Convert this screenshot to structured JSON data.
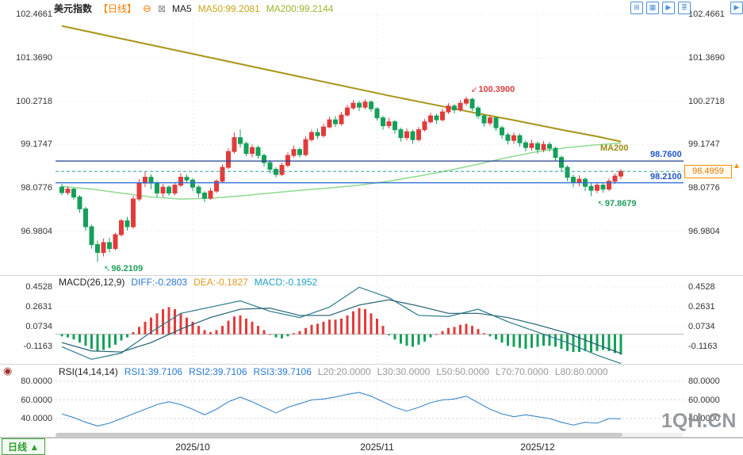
{
  "header": {
    "symbol": "美元指数",
    "period": "【日线】",
    "collapse_icon": "⊖",
    "ma5_checkbox": "⊠",
    "ma5": "MA5",
    "ma50": "MA50:99.2081",
    "ma200": "MA200:99.2144"
  },
  "toolbar_icons": [
    {
      "name": "grid-plus-icon",
      "glyph": "⊞"
    },
    {
      "name": "grid-view-icon",
      "glyph": "▦"
    },
    {
      "name": "forward-icon",
      "glyph": "▶"
    },
    {
      "name": "list-icon",
      "glyph": "≣"
    }
  ],
  "edge_icon": {
    "name": "panel-right-icon",
    "glyph": "▶"
  },
  "side_icon": {
    "name": "target-icon",
    "glyph": "◉"
  },
  "macd_header": {
    "title": "MACD(26,12,9)",
    "diff": "DIFF:-0.2803",
    "dea": "DEA:-0.1827",
    "macd": "MACD:-0.1952"
  },
  "rsi_header": {
    "title": "RSI(14,14,14)",
    "rsi1": "RSI1:39.7106",
    "rsi2": "RSI2:39.7106",
    "rsi3": "RSI3:39.7106",
    "levels": [
      "L20:20.0000",
      "L30:30.0000",
      "L50:50.0000",
      "L70:70.0000",
      "L80:80.0000"
    ]
  },
  "footer": {
    "period_button": "日线 ▲",
    "watermark": "1QH.CN"
  },
  "overlays": {
    "hline1_label": "98.7600",
    "hline2_label": "98.2100",
    "last_price_label": "98.4959",
    "marker_arrow": "▲"
  },
  "annotations": {
    "peak": "100.3900",
    "trough": "96.2109",
    "recent_low": "97.8679",
    "ma200_tag": "MA200"
  },
  "chart_data": {
    "type": "candlestick",
    "symbol": "美元指数",
    "interval": "日线",
    "legend": {
      "ma50_last": 99.2081,
      "ma200_last": 99.2144
    },
    "price_ticks": [
      102.4661,
      101.369,
      100.2718,
      99.1747,
      98.0776,
      96.9804
    ],
    "macd_ticks": [
      0.4528,
      0.2631,
      0.0734,
      -0.1163
    ],
    "rsi_ticks": [
      80,
      60,
      40
    ],
    "x_ticks": {
      "labels": [
        "2025/10",
        "2025/11",
        "2025/12"
      ],
      "indices": [
        22,
        53,
        80
      ]
    },
    "levels": {
      "hline1": 98.76,
      "hline2": 98.21,
      "last_price": 98.4959
    },
    "extremes": {
      "high": 100.39,
      "high_idx": 68,
      "low": 96.2109,
      "low_idx": 6,
      "recent_low": 97.8679,
      "recent_low_idx": 89
    },
    "candles": [
      [
        98.1,
        98.18,
        97.9,
        97.96
      ],
      [
        97.96,
        98.12,
        97.9,
        98.05
      ],
      [
        98.05,
        98.08,
        97.78,
        97.85
      ],
      [
        97.85,
        97.9,
        97.45,
        97.55
      ],
      [
        97.55,
        97.6,
        97.0,
        97.1
      ],
      [
        97.1,
        97.15,
        96.55,
        96.65
      ],
      [
        96.65,
        96.75,
        96.21,
        96.45
      ],
      [
        96.45,
        96.8,
        96.35,
        96.7
      ],
      [
        96.7,
        96.82,
        96.45,
        96.55
      ],
      [
        96.55,
        96.95,
        96.5,
        96.9
      ],
      [
        96.9,
        97.3,
        96.85,
        97.25
      ],
      [
        97.25,
        97.35,
        97.0,
        97.1
      ],
      [
        97.1,
        97.88,
        97.05,
        97.8
      ],
      [
        97.8,
        98.3,
        97.75,
        98.2
      ],
      [
        98.2,
        98.48,
        98.1,
        98.35
      ],
      [
        98.35,
        98.42,
        98.05,
        98.2
      ],
      [
        98.2,
        98.25,
        97.85,
        97.95
      ],
      [
        97.95,
        98.18,
        97.85,
        98.1
      ],
      [
        98.1,
        98.15,
        97.88,
        97.95
      ],
      [
        97.95,
        98.22,
        97.9,
        98.15
      ],
      [
        98.15,
        98.45,
        98.1,
        98.35
      ],
      [
        98.35,
        98.42,
        98.2,
        98.28
      ],
      [
        98.28,
        98.33,
        98.0,
        98.1
      ],
      [
        98.1,
        98.15,
        97.85,
        97.95
      ],
      [
        97.95,
        98.0,
        97.72,
        97.82
      ],
      [
        97.82,
        98.08,
        97.78,
        98.0
      ],
      [
        98.0,
        98.3,
        97.95,
        98.25
      ],
      [
        98.25,
        98.68,
        98.2,
        98.6
      ],
      [
        98.6,
        99.08,
        98.55,
        99.0
      ],
      [
        99.0,
        99.48,
        98.95,
        99.35
      ],
      [
        99.35,
        99.55,
        99.1,
        99.2
      ],
      [
        99.2,
        99.25,
        98.88,
        98.95
      ],
      [
        98.95,
        99.18,
        98.85,
        99.1
      ],
      [
        99.1,
        99.15,
        98.82,
        98.9
      ],
      [
        98.9,
        98.95,
        98.62,
        98.72
      ],
      [
        98.72,
        98.78,
        98.45,
        98.55
      ],
      [
        98.55,
        98.6,
        98.35,
        98.42
      ],
      [
        98.42,
        98.72,
        98.38,
        98.65
      ],
      [
        98.65,
        98.98,
        98.6,
        98.9
      ],
      [
        98.9,
        99.15,
        98.85,
        99.05
      ],
      [
        99.05,
        99.1,
        98.85,
        98.92
      ],
      [
        98.92,
        99.38,
        98.88,
        99.3
      ],
      [
        99.3,
        99.55,
        99.25,
        99.48
      ],
      [
        99.48,
        99.58,
        99.32,
        99.4
      ],
      [
        99.4,
        99.7,
        99.35,
        99.62
      ],
      [
        99.62,
        99.88,
        99.58,
        99.8
      ],
      [
        99.8,
        99.9,
        99.62,
        99.7
      ],
      [
        99.7,
        100.0,
        99.66,
        99.92
      ],
      [
        99.92,
        100.18,
        99.88,
        100.1
      ],
      [
        100.1,
        100.3,
        100.05,
        100.22
      ],
      [
        100.22,
        100.28,
        100.02,
        100.12
      ],
      [
        100.12,
        100.32,
        100.06,
        100.25
      ],
      [
        100.25,
        100.3,
        100.0,
        100.08
      ],
      [
        100.08,
        100.12,
        99.78,
        99.85
      ],
      [
        99.85,
        99.9,
        99.55,
        99.65
      ],
      [
        99.65,
        99.85,
        99.58,
        99.75
      ],
      [
        99.75,
        99.8,
        99.45,
        99.55
      ],
      [
        99.55,
        99.6,
        99.25,
        99.35
      ],
      [
        99.35,
        99.58,
        99.28,
        99.5
      ],
      [
        99.5,
        99.55,
        99.2,
        99.3
      ],
      [
        99.3,
        99.62,
        99.25,
        99.55
      ],
      [
        99.55,
        99.82,
        99.5,
        99.75
      ],
      [
        99.75,
        99.98,
        99.7,
        99.9
      ],
      [
        99.9,
        99.95,
        99.7,
        99.8
      ],
      [
        99.8,
        100.08,
        99.76,
        100.0
      ],
      [
        100.0,
        100.22,
        99.95,
        100.15
      ],
      [
        100.15,
        100.2,
        99.96,
        100.05
      ],
      [
        100.05,
        100.3,
        100.0,
        100.22
      ],
      [
        100.22,
        100.39,
        100.15,
        100.32
      ],
      [
        100.32,
        100.36,
        100.02,
        100.1
      ],
      [
        100.1,
        100.15,
        99.82,
        99.9
      ],
      [
        99.9,
        99.95,
        99.62,
        99.72
      ],
      [
        99.72,
        99.92,
        99.65,
        99.85
      ],
      [
        99.85,
        99.88,
        99.52,
        99.6
      ],
      [
        99.6,
        99.65,
        99.32,
        99.42
      ],
      [
        99.42,
        99.48,
        99.18,
        99.28
      ],
      [
        99.28,
        99.48,
        99.2,
        99.4
      ],
      [
        99.4,
        99.45,
        99.12,
        99.22
      ],
      [
        99.22,
        99.28,
        99.0,
        99.1
      ],
      [
        99.1,
        99.3,
        99.02,
        99.2
      ],
      [
        99.2,
        99.25,
        98.95,
        99.05
      ],
      [
        99.05,
        99.26,
        98.98,
        99.18
      ],
      [
        99.18,
        99.24,
        99.0,
        99.08
      ],
      [
        99.08,
        99.12,
        98.76,
        98.85
      ],
      [
        98.85,
        98.9,
        98.5,
        98.6
      ],
      [
        98.6,
        98.65,
        98.25,
        98.35
      ],
      [
        98.35,
        98.42,
        98.1,
        98.22
      ],
      [
        98.22,
        98.4,
        98.12,
        98.3
      ],
      [
        98.3,
        98.35,
        98.0,
        98.12
      ],
      [
        98.12,
        98.2,
        97.87,
        98.02
      ],
      [
        98.02,
        98.22,
        97.95,
        98.15
      ],
      [
        98.15,
        98.2,
        97.96,
        98.05
      ],
      [
        98.05,
        98.32,
        98.0,
        98.25
      ],
      [
        98.25,
        98.45,
        98.18,
        98.38
      ],
      [
        98.38,
        98.55,
        98.3,
        98.5
      ]
    ],
    "ma50_points": {
      "idx_step": 5,
      "values": [
        98.12,
        98.05,
        97.95,
        97.85,
        97.8,
        97.82,
        97.88,
        97.95,
        98.02,
        98.08,
        98.15,
        98.25,
        98.38,
        98.52,
        98.68,
        98.85,
        99.0,
        99.1,
        99.17,
        99.21
      ]
    },
    "ma200_points": {
      "idx_step": 5,
      "values": [
        102.17,
        102.01,
        101.85,
        101.69,
        101.53,
        101.37,
        101.21,
        101.05,
        100.89,
        100.73,
        100.57,
        100.41,
        100.26,
        100.11,
        99.96,
        99.82,
        99.67,
        99.52,
        99.38,
        99.25
      ]
    },
    "macd": {
      "params": "26,12,9",
      "diff_last": -0.2803,
      "dea_last": -0.1827,
      "macd_last": -0.1952,
      "hist": [
        -0.02,
        -0.03,
        -0.05,
        -0.08,
        -0.11,
        -0.14,
        -0.16,
        -0.15,
        -0.13,
        -0.1,
        -0.06,
        -0.03,
        0.02,
        0.07,
        0.12,
        0.16,
        0.2,
        0.24,
        0.26,
        0.24,
        0.2,
        0.16,
        0.12,
        0.08,
        0.04,
        0.02,
        0.04,
        0.08,
        0.13,
        0.17,
        0.18,
        0.15,
        0.12,
        0.08,
        0.04,
        0.0,
        -0.03,
        -0.04,
        -0.02,
        0.01,
        0.03,
        0.06,
        0.09,
        0.1,
        0.12,
        0.14,
        0.14,
        0.15,
        0.18,
        0.22,
        0.25,
        0.24,
        0.2,
        0.15,
        0.08,
        -0.01,
        -0.05,
        -0.09,
        -0.11,
        -0.12,
        -0.1,
        -0.07,
        -0.03,
        0.0,
        0.03,
        0.06,
        0.07,
        0.09,
        0.1,
        0.08,
        0.05,
        0.01,
        -0.02,
        -0.05,
        -0.08,
        -0.11,
        -0.12,
        -0.13,
        -0.14,
        -0.13,
        -0.12,
        -0.11,
        -0.11,
        -0.12,
        -0.14,
        -0.16,
        -0.17,
        -0.17,
        -0.16,
        -0.17,
        -0.16,
        -0.15,
        -0.16,
        -0.18,
        -0.195
      ],
      "idx": [
        0,
        5,
        10,
        15,
        20,
        25,
        30,
        35,
        40,
        45,
        50,
        55,
        60,
        65,
        70,
        75,
        80,
        85,
        90,
        94
      ],
      "diff": [
        -0.12,
        -0.24,
        -0.18,
        0.02,
        0.2,
        0.26,
        0.32,
        0.22,
        0.16,
        0.26,
        0.45,
        0.35,
        0.18,
        0.17,
        0.24,
        0.12,
        0.02,
        -0.08,
        -0.2,
        -0.2803
      ],
      "dea": [
        -0.08,
        -0.16,
        -0.17,
        -0.08,
        0.05,
        0.16,
        0.24,
        0.25,
        0.18,
        0.18,
        0.28,
        0.33,
        0.27,
        0.2,
        0.2,
        0.16,
        0.09,
        0.01,
        -0.1,
        -0.1827
      ]
    },
    "rsi": {
      "params": "14,14,14",
      "last": 39.7106,
      "idx_step": 2,
      "values": [
        45,
        41,
        36,
        32,
        35,
        40,
        45,
        50,
        55,
        58,
        55,
        50,
        44,
        50,
        58,
        63,
        58,
        52,
        46,
        52,
        56,
        60,
        61,
        63,
        66,
        68,
        64,
        58,
        52,
        48,
        52,
        57,
        60,
        61,
        64,
        57,
        50,
        45,
        42,
        44,
        42,
        40,
        36,
        33,
        36,
        35,
        40,
        39.71
      ]
    },
    "colors": {
      "up": "#e23b3b",
      "down": "#14a05a",
      "ma50": "#8fd98f",
      "ma200": "#a89417",
      "hline1": "#24408e",
      "hline2": "#2e6bd4",
      "last_dash": "#2aa198",
      "diff": "#2b7a8c",
      "dea": "#1f5f6f",
      "rsi": "#3a85c8"
    }
  }
}
